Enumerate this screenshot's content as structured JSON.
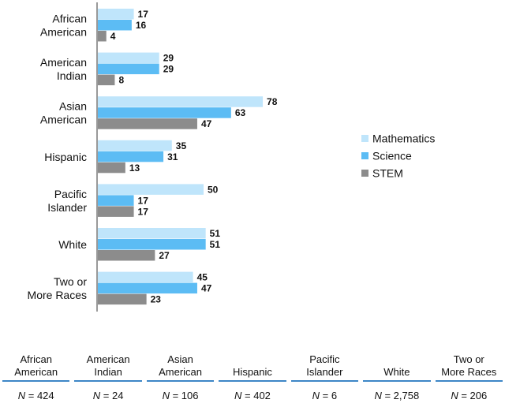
{
  "chart_data": {
    "type": "bar",
    "orientation": "horizontal",
    "categories": [
      [
        "African",
        "American"
      ],
      [
        "American",
        "Indian"
      ],
      [
        "Asian",
        "American"
      ],
      [
        "Hispanic"
      ],
      [
        "Pacific",
        "Islander"
      ],
      [
        "White"
      ],
      [
        "Two or",
        "More Races"
      ]
    ],
    "series": [
      {
        "name": "Mathematics",
        "color": "#bfe5fb",
        "values": [
          17,
          29,
          78,
          35,
          50,
          51,
          45
        ]
      },
      {
        "name": "Science",
        "color": "#5cbcf4",
        "values": [
          16,
          29,
          63,
          31,
          17,
          51,
          47
        ]
      },
      {
        "name": "STEM",
        "color": "#8c8c8c",
        "values": [
          4,
          8,
          47,
          13,
          17,
          27,
          23
        ]
      }
    ],
    "legend_position": "right",
    "grid": false
  },
  "n_table": {
    "headers": [
      [
        "African",
        "American"
      ],
      [
        "American",
        "Indian"
      ],
      [
        "Asian",
        "American"
      ],
      [
        "Hispanic"
      ],
      [
        "Pacific",
        "Islander"
      ],
      [
        "White"
      ],
      [
        "Two or",
        "More Races"
      ]
    ],
    "n_symbol": "N",
    "counts": [
      "= 424",
      "= 24",
      "= 106",
      "= 402",
      "= 6",
      "= 2,758",
      "= 206"
    ]
  }
}
